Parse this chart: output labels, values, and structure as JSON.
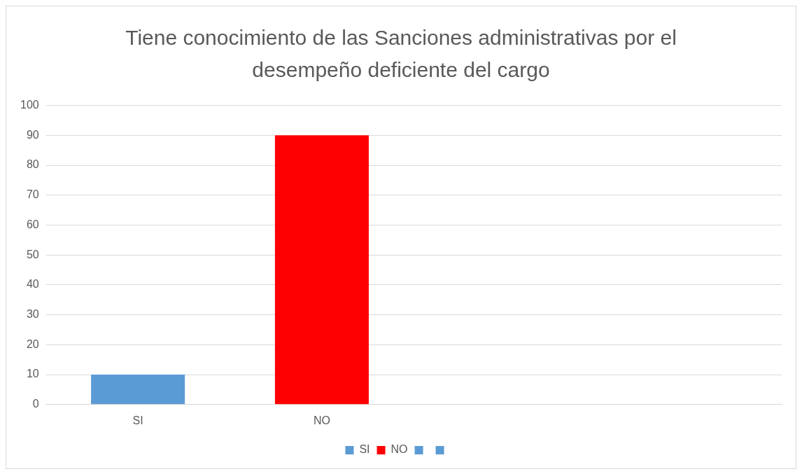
{
  "chart_data": {
    "type": "bar",
    "title": "Tiene conocimiento de las Sanciones administrativas por el desempeño deficiente del cargo",
    "categories": [
      "SI",
      "NO",
      null,
      null
    ],
    "series": [
      {
        "name": "SI",
        "color": "#5b9bd5",
        "values": [
          10,
          null,
          null,
          null
        ]
      },
      {
        "name": "NO",
        "color": "#ff0000",
        "values": [
          null,
          90,
          null,
          null
        ]
      },
      {
        "color": "#5b9bd5",
        "values": [
          null,
          null,
          null,
          null
        ]
      },
      {
        "color": "#5b9bd5",
        "values": [
          null,
          null,
          null,
          null
        ]
      }
    ],
    "ylim": [
      0,
      100
    ],
    "yticks": [
      0,
      10,
      20,
      30,
      40,
      50,
      60,
      70,
      80,
      90,
      100
    ],
    "grid": "y",
    "legend": "bottom"
  }
}
